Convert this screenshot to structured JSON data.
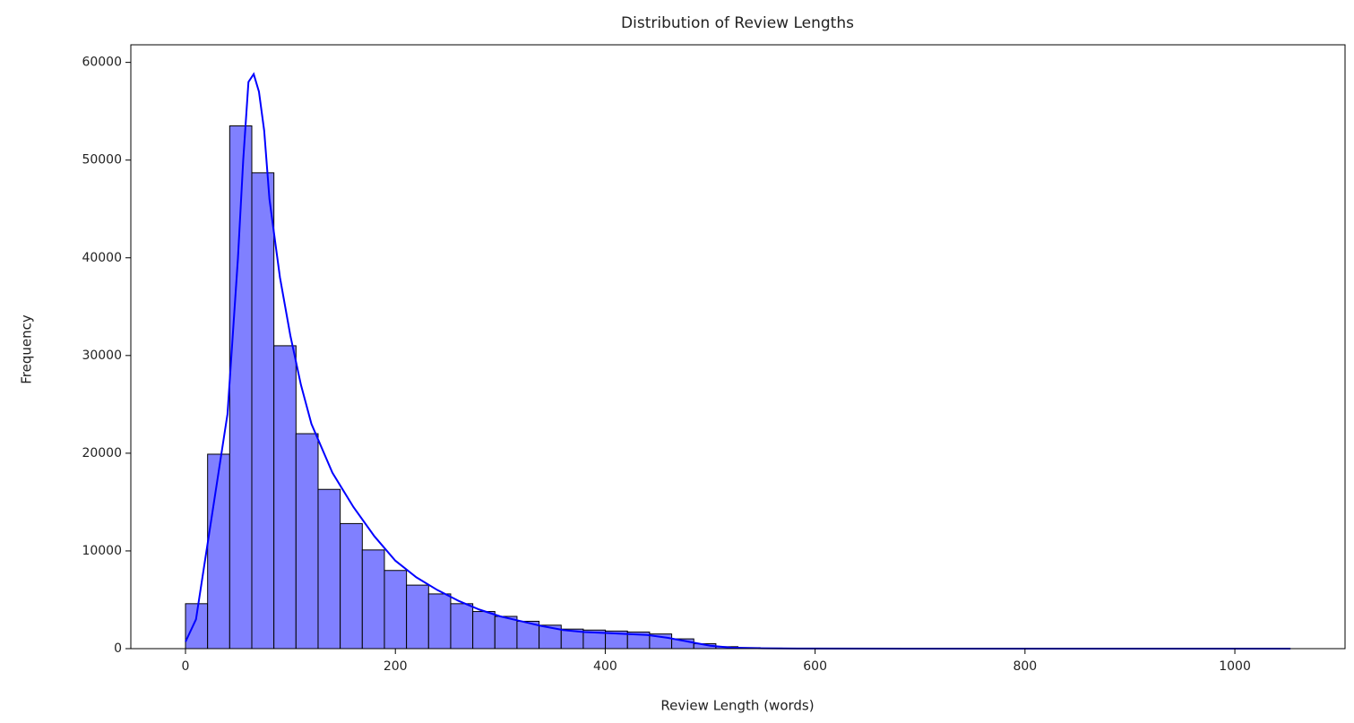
{
  "chart_data": {
    "type": "histogram",
    "title": "Distribution of Review Lengths",
    "xlabel": "Review Length (words)",
    "ylabel": "Frequency",
    "bins": [
      0,
      21.06,
      42.12,
      63.18,
      84.24,
      105.3,
      126.36,
      147.42,
      168.48,
      189.54,
      210.6,
      231.66,
      252.72,
      273.78,
      294.84,
      315.9,
      336.96,
      358.02,
      379.08,
      400.14,
      421.2,
      442.26,
      463.32,
      484.38,
      505.44,
      526.5,
      547.56,
      568.62,
      589.68,
      610.74,
      631.8,
      652.86,
      673.92,
      694.98,
      716.04,
      737.1,
      758.16,
      779.22,
      800.28,
      821.34,
      842.4,
      863.46,
      884.52,
      905.58,
      926.64,
      947.7,
      968.76,
      989.82,
      1010.88,
      1031.94,
      1053
    ],
    "values": [
      4600,
      19900,
      53500,
      48700,
      31000,
      22000,
      16300,
      12800,
      10100,
      8000,
      6500,
      5600,
      4600,
      3800,
      3300,
      2800,
      2400,
      2000,
      1900,
      1800,
      1700,
      1500,
      1000,
      500,
      200,
      100,
      50,
      30,
      20,
      10,
      10,
      8,
      6,
      5,
      4,
      3,
      3,
      2,
      2,
      2,
      1,
      1,
      1,
      1,
      1,
      1,
      0,
      0,
      0,
      1
    ],
    "color": "#8080ff",
    "kde": {
      "color": "#0000ff",
      "x": [
        0,
        10,
        20,
        30,
        40,
        50,
        55,
        60,
        65,
        70,
        75,
        80,
        90,
        100,
        110,
        120,
        140,
        160,
        180,
        200,
        220,
        240,
        260,
        280,
        300,
        320,
        340,
        360,
        380,
        400,
        420,
        440,
        460,
        480,
        500,
        520,
        550,
        600,
        700,
        800,
        1000,
        1053
      ],
      "y": [
        700,
        3000,
        10000,
        17000,
        24000,
        40000,
        50000,
        58000,
        58800,
        57000,
        53000,
        46000,
        38000,
        32000,
        27000,
        23000,
        18000,
        14500,
        11500,
        9000,
        7300,
        6000,
        4900,
        4000,
        3300,
        2800,
        2300,
        1900,
        1700,
        1600,
        1500,
        1400,
        1100,
        700,
        300,
        100,
        30,
        10,
        5,
        2,
        1,
        0
      ]
    },
    "xlim": [
      -52.1,
      1105
    ],
    "ylim": [
      0,
      61800
    ],
    "xticks": [
      0,
      200,
      400,
      600,
      800,
      1000
    ],
    "yticks": [
      0,
      10000,
      20000,
      30000,
      40000,
      50000,
      60000
    ]
  }
}
